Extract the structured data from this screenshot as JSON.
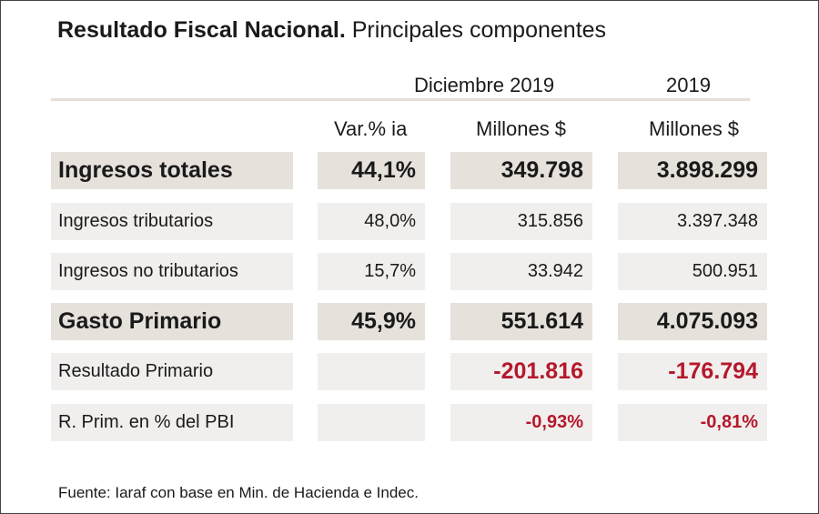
{
  "title": {
    "bold": "Resultado Fiscal Nacional.",
    "regular": "Principales componentes"
  },
  "periods": {
    "december": "Diciembre 2019",
    "year": "2019"
  },
  "units": {
    "var": "Var.% ia",
    "millions_dec": "Millones $",
    "millions_year": "Millones $"
  },
  "rows": [
    {
      "label": "Ingresos totales",
      "var": "44,1%",
      "dec": "349.798",
      "year": "3.898.299"
    },
    {
      "label": "Ingresos tributarios",
      "var": "48,0%",
      "dec": "315.856",
      "year": "3.397.348"
    },
    {
      "label": "Ingresos no tributarios",
      "var": "15,7%",
      "dec": "33.942",
      "year": "500.951"
    },
    {
      "label": "Gasto Primario",
      "var": "45,9%",
      "dec": "551.614",
      "year": "4.075.093"
    },
    {
      "label": "Resultado Primario",
      "var": "",
      "dec": "-201.816",
      "year": "-176.794"
    },
    {
      "label": "R. Prim. en % del PBI",
      "var": "",
      "dec": "-0,93%",
      "year": "-0,81%"
    }
  ],
  "source": "Fuente: Iaraf con base en Min. de Hacienda e Indec.",
  "colors": {
    "negative": "#b5182b",
    "cell_light": "#f1efed",
    "cell_dark": "#e7e1dc",
    "rule": "#e6dfd7"
  }
}
